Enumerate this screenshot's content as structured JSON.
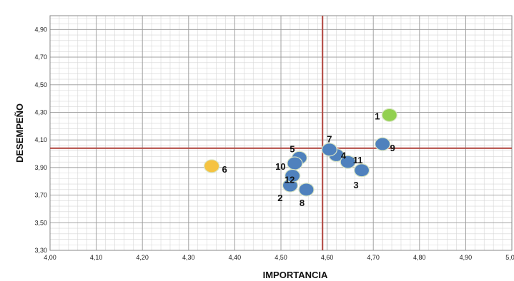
{
  "chart_data": {
    "type": "scatter",
    "xlabel": "IMPORTANCIA",
    "ylabel": "DESEMPEÑO",
    "xlim": [
      4.0,
      5.0
    ],
    "ylim": [
      3.3,
      5.0
    ],
    "x_ticks": [
      "4,00",
      "4,10",
      "4,20",
      "4,30",
      "4,40",
      "4,50",
      "4,60",
      "4,70",
      "4,80",
      "4,90",
      "5,00"
    ],
    "y_ticks": [
      "3,30",
      "3,50",
      "3,70",
      "3,90",
      "4,10",
      "4,30",
      "4,50",
      "4,70",
      "4,90"
    ],
    "grid": true,
    "reference_lines": {
      "x": 4.59,
      "y": 4.04,
      "color": "#b5504a"
    },
    "points": [
      {
        "label": "1",
        "x": 4.735,
        "y": 4.28,
        "color": "#92d050"
      },
      {
        "label": "2",
        "x": 4.52,
        "y": 3.77,
        "color": "#4f81bd"
      },
      {
        "label": "3",
        "x": 4.675,
        "y": 3.88,
        "color": "#4f81bd"
      },
      {
        "label": "4",
        "x": 4.62,
        "y": 3.99,
        "color": "#4f81bd"
      },
      {
        "label": "5",
        "x": 4.54,
        "y": 3.97,
        "color": "#4f81bd"
      },
      {
        "label": "6",
        "x": 4.35,
        "y": 3.91,
        "color": "#f5c342"
      },
      {
        "label": "7",
        "x": 4.605,
        "y": 4.03,
        "color": "#4f81bd"
      },
      {
        "label": "8",
        "x": 4.555,
        "y": 3.74,
        "color": "#4f81bd"
      },
      {
        "label": "9",
        "x": 4.72,
        "y": 4.07,
        "color": "#4f81bd"
      },
      {
        "label": "10",
        "x": 4.53,
        "y": 3.93,
        "color": "#4f81bd"
      },
      {
        "label": "11",
        "x": 4.645,
        "y": 3.94,
        "color": "#4f81bd"
      },
      {
        "label": "12",
        "x": 4.525,
        "y": 3.84,
        "color": "#4f81bd"
      }
    ]
  }
}
